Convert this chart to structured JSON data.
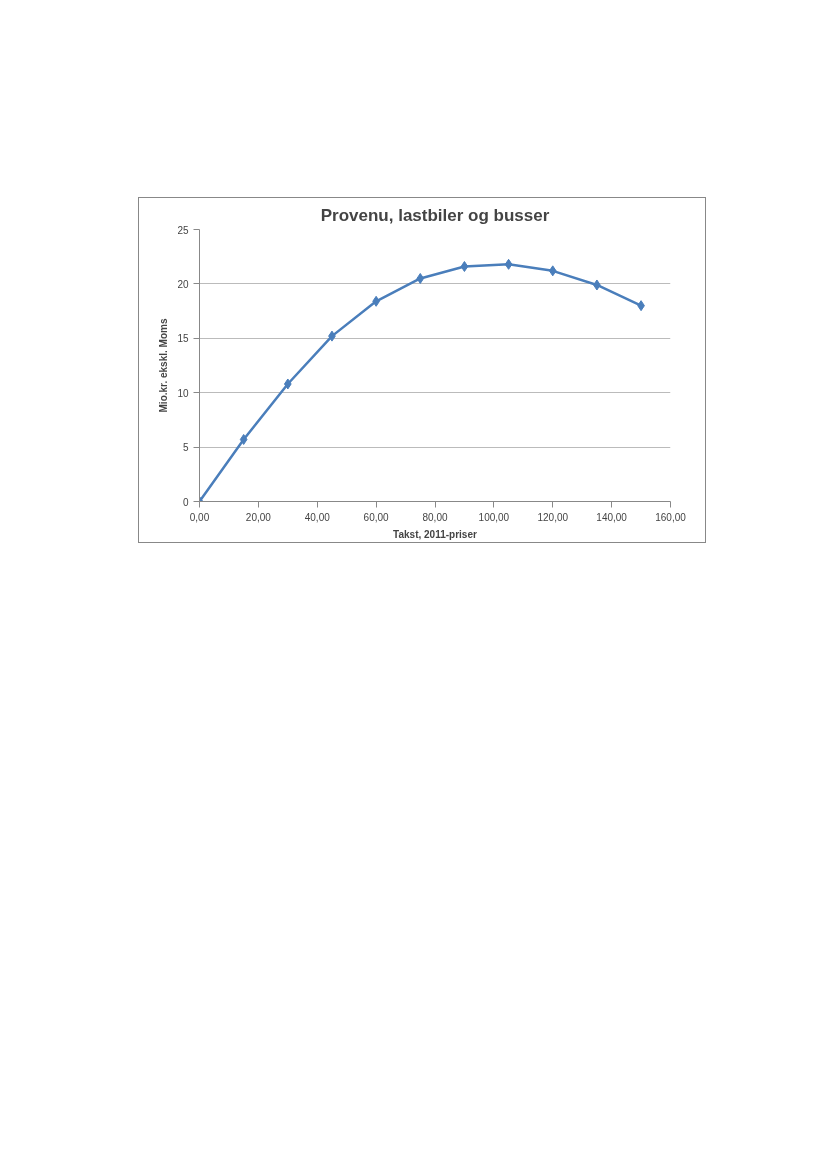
{
  "chart_data": {
    "type": "line",
    "title": "Provenu, lastbiler og busser",
    "xlabel": "Takst, 2011-priser",
    "ylabel": "Mio.kr. ekskl. Moms",
    "x": [
      0,
      15,
      30,
      45,
      60,
      75,
      90,
      105,
      120,
      135,
      150
    ],
    "series": [
      {
        "color": "#4a7ebb",
        "values": [
          0,
          5.7,
          10.8,
          15.2,
          18.4,
          20.5,
          21.6,
          21.8,
          21.2,
          19.9,
          18.0
        ]
      }
    ],
    "xlim": [
      0,
      160
    ],
    "xticks": [
      {
        "value": 0,
        "label": "0,00"
      },
      {
        "value": 20,
        "label": "20,00"
      },
      {
        "value": 40,
        "label": "40,00"
      },
      {
        "value": 60,
        "label": "60,00"
      },
      {
        "value": 80,
        "label": "80,00"
      },
      {
        "value": 100,
        "label": "100,00"
      },
      {
        "value": 120,
        "label": "120,00"
      },
      {
        "value": 140,
        "label": "140,00"
      },
      {
        "value": 160,
        "label": "160,00"
      }
    ],
    "ylim": [
      0,
      25
    ],
    "yticks": [
      0,
      5,
      10,
      15,
      20,
      25
    ],
    "grid": "y",
    "marker": "diamond",
    "line_style": "solid"
  }
}
